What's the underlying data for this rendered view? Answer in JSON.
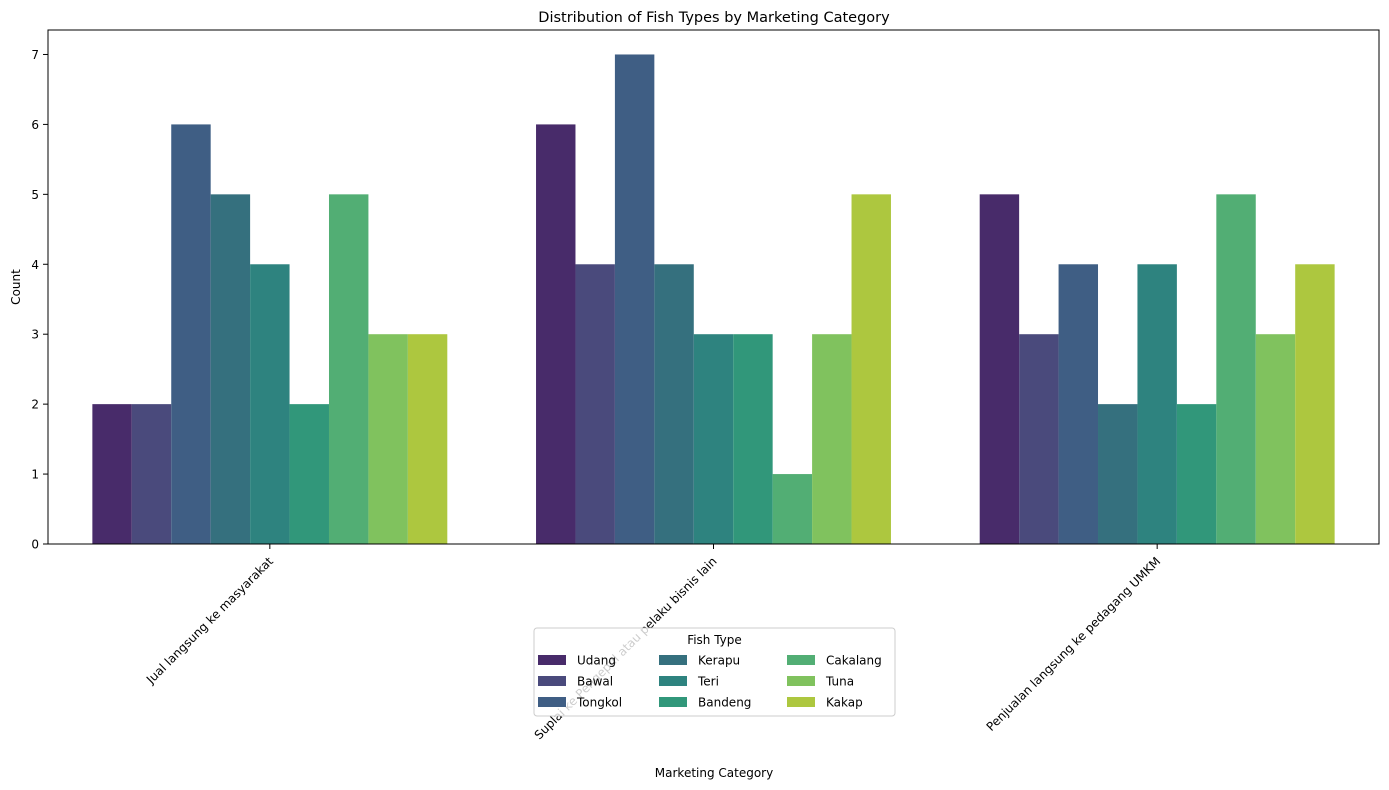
{
  "chart_data": {
    "type": "bar",
    "title": "Distribution of Fish Types by Marketing Category",
    "xlabel": "Marketing Category",
    "ylabel": "Count",
    "ylim": [
      0,
      7.35
    ],
    "yticks": [
      "0",
      "1",
      "2",
      "3",
      "4",
      "5",
      "6",
      "7"
    ],
    "grid": false,
    "categories": [
      "Jual langsung ke masyarakat",
      "Suplai ke Pengepul atau pelaku bisnis lain",
      "Penjualan langsung ke pedagang UMKM"
    ],
    "legend": {
      "title": "Fish Type",
      "placement": "lower center",
      "columns": 3
    },
    "series": [
      {
        "name": "Udang",
        "color": "#482b6a",
        "values": [
          2,
          6,
          5
        ]
      },
      {
        "name": "Bawal",
        "color": "#4a4a7c",
        "values": [
          2,
          4,
          3
        ]
      },
      {
        "name": "Tongkol",
        "color": "#3f5e84",
        "values": [
          6,
          7,
          4
        ]
      },
      {
        "name": "Kerapu",
        "color": "#35707e",
        "values": [
          5,
          4,
          2
        ]
      },
      {
        "name": "Teri",
        "color": "#2e837f",
        "values": [
          4,
          3,
          4
        ]
      },
      {
        "name": "Bandeng",
        "color": "#31977a",
        "values": [
          2,
          3,
          2
        ]
      },
      {
        "name": "Cakalang",
        "color": "#52ae74",
        "values": [
          5,
          1,
          5
        ]
      },
      {
        "name": "Tuna",
        "color": "#80c25e",
        "values": [
          3,
          3,
          3
        ]
      },
      {
        "name": "Kakap",
        "color": "#adc73f",
        "values": [
          3,
          5,
          4
        ]
      }
    ]
  }
}
